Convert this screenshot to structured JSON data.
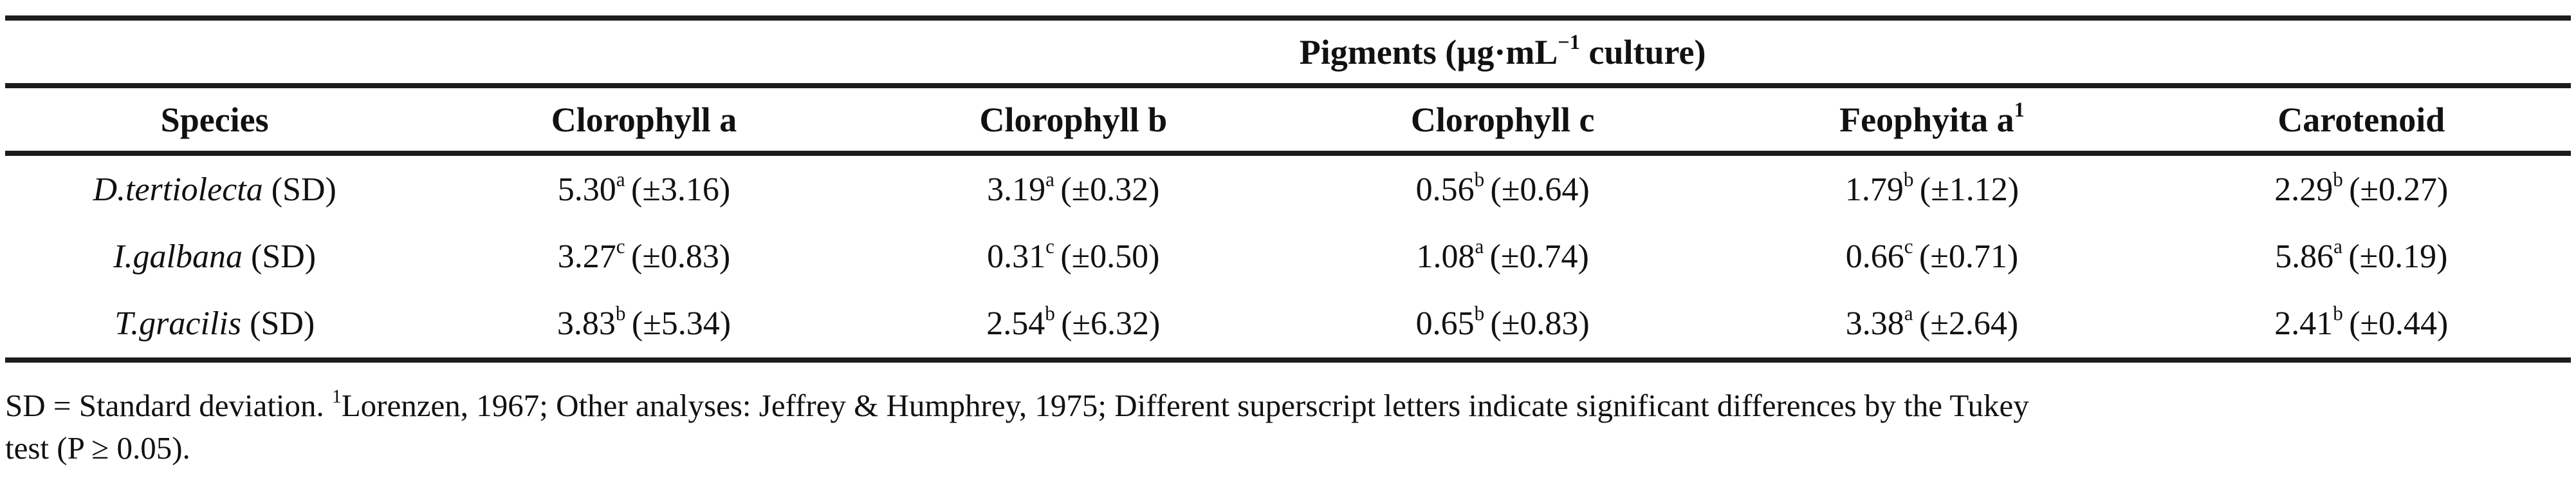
{
  "table": {
    "spanner": {
      "prefix": "Pigments (µg·mL",
      "sup": "−1",
      "suffix": " culture)"
    },
    "columns": [
      {
        "label": "Species",
        "sup": ""
      },
      {
        "label": "Clorophyll a",
        "sup": ""
      },
      {
        "label": "Clorophyll b",
        "sup": ""
      },
      {
        "label": "Clorophyll c",
        "sup": ""
      },
      {
        "label": "Feophyita a",
        "sup": "1"
      },
      {
        "label": "Carotenoid",
        "sup": ""
      }
    ],
    "rows": [
      {
        "species_italic": "D.tertiolecta",
        "species_suffix": " (SD)",
        "cells": [
          {
            "value": "5.30",
            "sup": "a",
            "sd": "(±3.16)"
          },
          {
            "value": "3.19",
            "sup": "a",
            "sd": "(±0.32)"
          },
          {
            "value": "0.56",
            "sup": "b",
            "sd": "(±0.64)"
          },
          {
            "value": "1.79",
            "sup": "b",
            "sd": "(±1.12)"
          },
          {
            "value": "2.29",
            "sup": "b",
            "sd": "(±0.27)"
          }
        ]
      },
      {
        "species_italic": "I.galbana",
        "species_suffix": " (SD)",
        "cells": [
          {
            "value": "3.27",
            "sup": "c",
            "sd": "(±0.83)"
          },
          {
            "value": "0.31",
            "sup": "c",
            "sd": "(±0.50)"
          },
          {
            "value": "1.08",
            "sup": "a",
            "sd": "(±0.74)"
          },
          {
            "value": "0.66",
            "sup": "c",
            "sd": "(±0.71)"
          },
          {
            "value": "5.86",
            "sup": "a",
            "sd": "(±0.19)"
          }
        ]
      },
      {
        "species_italic": "T.gracilis",
        "species_suffix": " (SD)",
        "cells": [
          {
            "value": "3.83",
            "sup": "b",
            "sd": "(±5.34)"
          },
          {
            "value": "2.54",
            "sup": "b",
            "sd": "(±6.32)"
          },
          {
            "value": "0.65",
            "sup": "b",
            "sd": "(±0.83)"
          },
          {
            "value": "3.38",
            "sup": "a",
            "sd": "(±2.64)"
          },
          {
            "value": "2.41",
            "sup": "b",
            "sd": "(±0.44)"
          }
        ]
      }
    ],
    "footnote": {
      "line1_pre": "SD = Standard deviation. ",
      "line1_sup": "1",
      "line1_post": "Lorenzen, 1967; Other analyses: Jeffrey & Humphrey, 1975; Different superscript letters indicate significant differences by the Tukey",
      "line2": "test (P ≥ 0.05)."
    }
  }
}
